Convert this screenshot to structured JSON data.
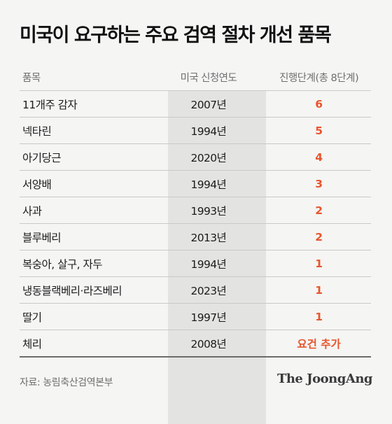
{
  "title": "미국이 요구하는 주요 검역 절차 개선 품목",
  "columns": [
    "품목",
    "미국 신청연도",
    "진행단계(총 8단계)"
  ],
  "rows": [
    {
      "item": "11개주 감자",
      "year": "2007년",
      "stage": "6"
    },
    {
      "item": "넥타린",
      "year": "1994년",
      "stage": "5"
    },
    {
      "item": "아기당근",
      "year": "2020년",
      "stage": "4"
    },
    {
      "item": "서양배",
      "year": "1994년",
      "stage": "3"
    },
    {
      "item": "사과",
      "year": "1993년",
      "stage": "2"
    },
    {
      "item": "블루베리",
      "year": "2013년",
      "stage": "2"
    },
    {
      "item": "복숭아, 살구, 자두",
      "year": "1994년",
      "stage": "1"
    },
    {
      "item": "냉동블랙베리·라즈베리",
      "year": "2023년",
      "stage": "1"
    },
    {
      "item": "딸기",
      "year": "1997년",
      "stage": "1"
    },
    {
      "item": "체리",
      "year": "2008년",
      "stage": "요건 추가"
    }
  ],
  "source": "자료: 농림축산검역본부",
  "logo": "The JoongAng",
  "colors": {
    "accent": "#e8552e",
    "shade": "#e3e3e1",
    "background": "#f5f5f3"
  }
}
